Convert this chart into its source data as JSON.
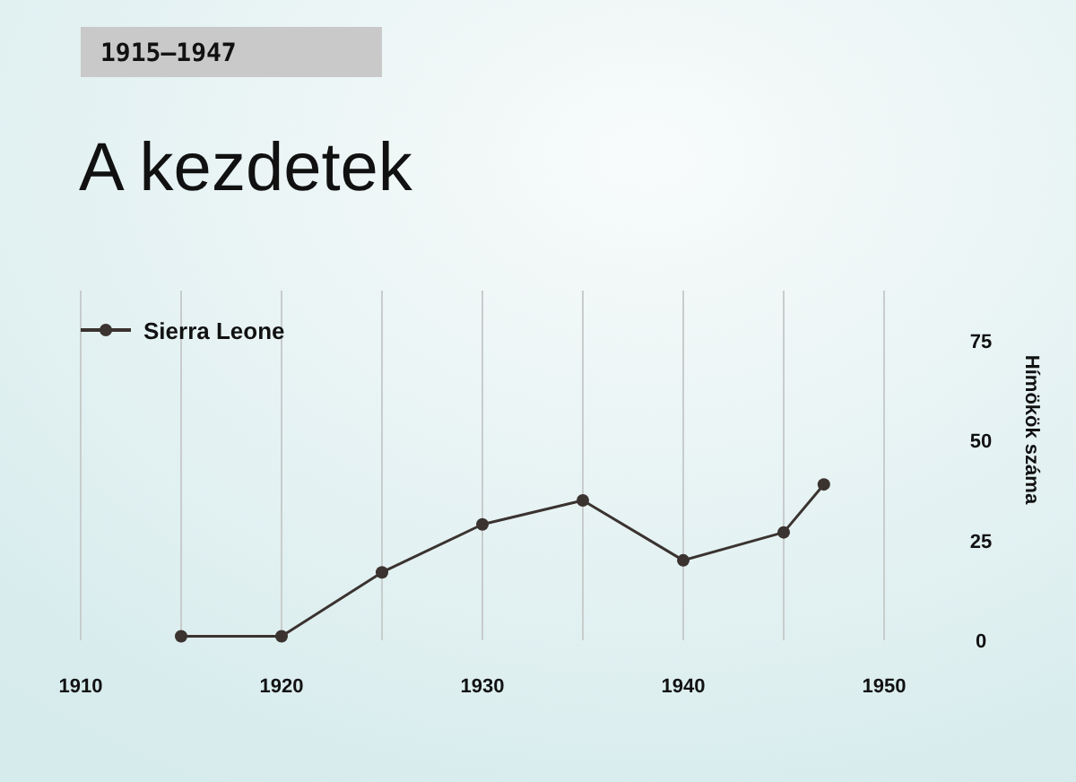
{
  "chart_data": {
    "type": "line",
    "title": "A kezdetek",
    "subtitle": "1915–1947",
    "ylabel": "Hímökök száma",
    "x": [
      1915,
      1920,
      1925,
      1930,
      1935,
      1940,
      1945,
      1947
    ],
    "series": [
      {
        "name": "Sierra Leone",
        "color": "#3a3330",
        "values": [
          1,
          1,
          17,
          29,
          35,
          20,
          27,
          39
        ]
      }
    ],
    "xlim": [
      1910,
      1950
    ],
    "xticks": [
      1910,
      {
        "value": 1915,
        "label": null
      },
      1920,
      {
        "value": 1925,
        "label": null
      },
      1930,
      {
        "value": 1935,
        "label": null
      },
      1940,
      {
        "value": 1945,
        "label": null
      },
      1950
    ],
    "ylim": [
      0,
      87.5
    ],
    "yticks": [
      0,
      25,
      50,
      75
    ],
    "grid": "x",
    "legend": "top left",
    "marker": "circle",
    "line_style": "solid"
  }
}
